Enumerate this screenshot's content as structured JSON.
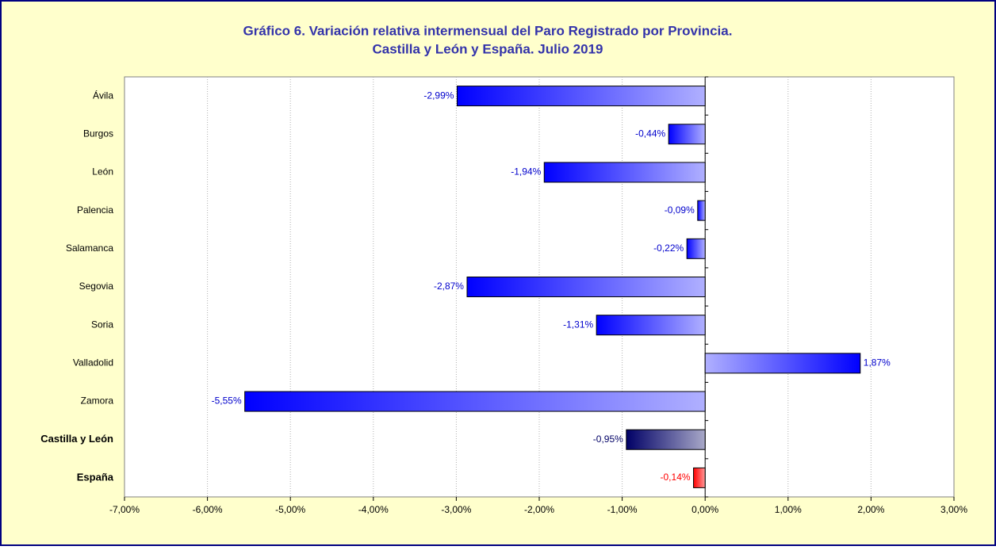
{
  "chart_data": {
    "type": "barh",
    "title": [
      "Gráfico 6. Variación relativa intermensual del Paro Registrado por Provincia.",
      "Castilla y León y España. Julio 2019"
    ],
    "categories": [
      "Ávila",
      "Burgos",
      "León",
      "Palencia",
      "Salamanca",
      "Segovia",
      "Soria",
      "Valladolid",
      "Zamora",
      "Castilla y León",
      "España"
    ],
    "values": [
      -2.99,
      -0.44,
      -1.94,
      -0.09,
      -0.22,
      -2.87,
      -1.31,
      1.87,
      -5.55,
      -0.95,
      -0.14
    ],
    "value_labels": [
      "-2,99%",
      "-0,44%",
      "-1,94%",
      "-0,09%",
      "-0,22%",
      "-2,87%",
      "-1,31%",
      "1,87%",
      "-5,55%",
      "-0,95%",
      "-0,14%"
    ],
    "colors": [
      [
        "#0000ff",
        "#b0b0ff"
      ],
      [
        "#0000ff",
        "#b0b0ff"
      ],
      [
        "#0000ff",
        "#b0b0ff"
      ],
      [
        "#0000ff",
        "#b0b0ff"
      ],
      [
        "#0000ff",
        "#b0b0ff"
      ],
      [
        "#0000ff",
        "#b0b0ff"
      ],
      [
        "#0000ff",
        "#b0b0ff"
      ],
      [
        "#0000ff",
        "#b0b0ff"
      ],
      [
        "#0000ff",
        "#b0b0ff"
      ],
      [
        "#000066",
        "#a8a8c8"
      ],
      [
        "#ff0000",
        "#ff9a9a"
      ]
    ],
    "label_colors": [
      "#0000cc",
      "#0000cc",
      "#0000cc",
      "#0000cc",
      "#0000cc",
      "#0000cc",
      "#0000cc",
      "#0000cc",
      "#0000cc",
      "#000066",
      "#ff0000"
    ],
    "category_bold": [
      false,
      false,
      false,
      false,
      false,
      false,
      false,
      false,
      false,
      true,
      true
    ],
    "xlim": [
      -7,
      3
    ],
    "xticks": [
      {
        "value": -7,
        "label": "-7,00%"
      },
      {
        "value": -6,
        "label": "-6,00%"
      },
      {
        "value": -5,
        "label": "-5,00%"
      },
      {
        "value": -4,
        "label": "-4,00%"
      },
      {
        "value": -3,
        "label": "-3,00%"
      },
      {
        "value": -2,
        "label": "-2,00%"
      },
      {
        "value": -1,
        "label": "-1,00%"
      },
      {
        "value": 0,
        "label": "0,00%"
      },
      {
        "value": 1,
        "label": "1,00%"
      },
      {
        "value": 2,
        "label": "2,00%"
      },
      {
        "value": 3,
        "label": "3,00%"
      }
    ],
    "grid": true
  }
}
